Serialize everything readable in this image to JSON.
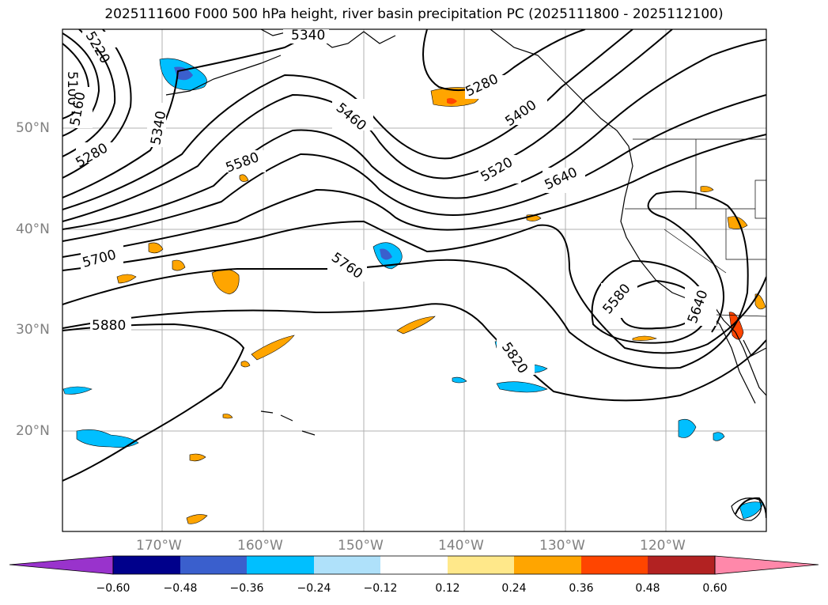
{
  "title": "2025111600 F000 500 hPa height, river basin precipitation PC (2025111800 - 2025112100)",
  "latitude_labels": [
    "50°N",
    "40°N",
    "30°N",
    "20°N"
  ],
  "longitude_labels": [
    "170°W",
    "160°W",
    "150°W",
    "140°W",
    "130°W",
    "120°W"
  ],
  "contour_labels": [
    "5220",
    "5100",
    "5160",
    "5340",
    "5280",
    "5340",
    "5460",
    "5580",
    "5280",
    "5400",
    "5520",
    "5640",
    "5700",
    "5760",
    "5880",
    "5820",
    "5580",
    "5640"
  ],
  "colorbar": {
    "tick_labels": [
      "−0.60",
      "−0.48",
      "−0.36",
      "−0.24",
      "−0.12",
      "0.12",
      "0.24",
      "0.36",
      "0.48",
      "0.60"
    ],
    "colors": [
      "#9933cc",
      "#00008b",
      "#3a5fcd",
      "#00bfff",
      "#afe1fa",
      "#ffffff",
      "#ffe88a",
      "#ffa500",
      "#ff4500",
      "#b22222",
      "#ff88aa"
    ]
  }
}
